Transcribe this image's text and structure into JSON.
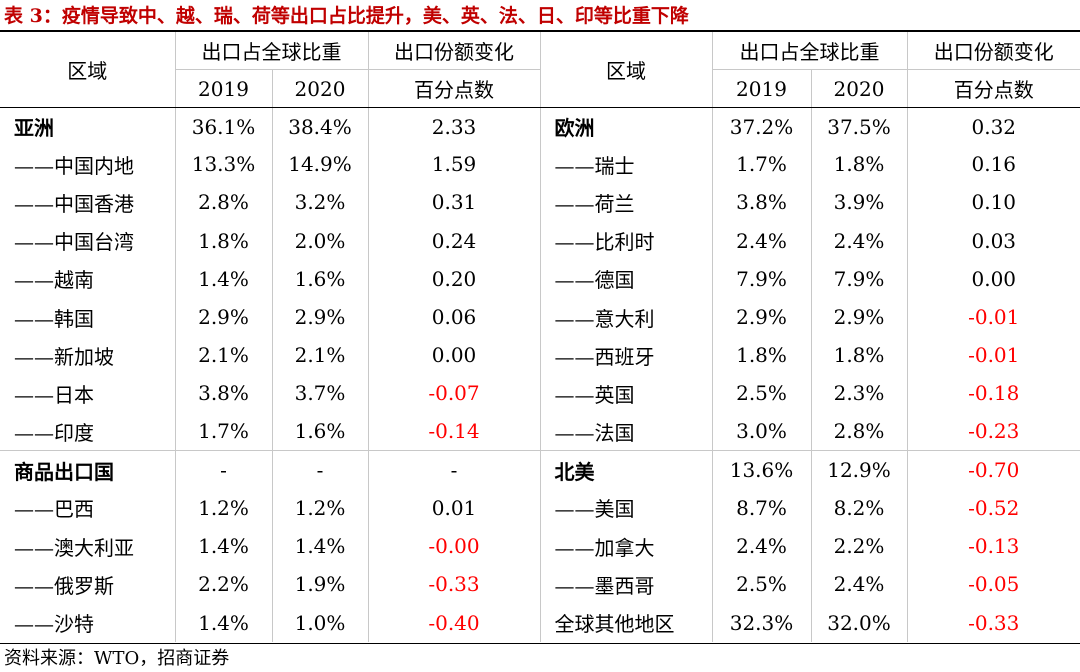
{
  "title": "表 3：疫情导致中、越、瑞、荷等出口占比提升，美、英、法、日、印等比重下降",
  "headers": {
    "region": "区域",
    "share": "出口占全球比重",
    "change": "出口份额变化",
    "y2019": "2019",
    "y2020": "2020",
    "unit": "百分点数"
  },
  "rows": [
    {
      "left": [
        "亚洲",
        "36.1%",
        "38.4%",
        "2.33"
      ],
      "right": [
        "欧洲",
        "37.2%",
        "37.5%",
        "0.32"
      ]
    },
    {
      "left": [
        "——中国内地",
        "13.3%",
        "14.9%",
        "1.59"
      ],
      "right": [
        "——瑞士",
        "1.7%",
        "1.8%",
        "0.16"
      ]
    },
    {
      "left": [
        "——中国香港",
        "2.8%",
        "3.2%",
        "0.31"
      ],
      "right": [
        "——荷兰",
        "3.8%",
        "3.9%",
        "0.10"
      ]
    },
    {
      "left": [
        "——中国台湾",
        "1.8%",
        "2.0%",
        "0.24"
      ],
      "right": [
        "——比利时",
        "2.4%",
        "2.4%",
        "0.03"
      ]
    },
    {
      "left": [
        "——越南",
        "1.4%",
        "1.6%",
        "0.20"
      ],
      "right": [
        "——德国",
        "7.9%",
        "7.9%",
        "0.00"
      ]
    },
    {
      "left": [
        "——韩国",
        "2.9%",
        "2.9%",
        "0.06"
      ],
      "right": [
        "——意大利",
        "2.9%",
        "2.9%",
        "-0.01"
      ]
    },
    {
      "left": [
        "——新加坡",
        "2.1%",
        "2.1%",
        "0.00"
      ],
      "right": [
        "——西班牙",
        "1.8%",
        "1.8%",
        "-0.01"
      ]
    },
    {
      "left": [
        "——日本",
        "3.8%",
        "3.7%",
        "-0.07"
      ],
      "right": [
        "——英国",
        "2.5%",
        "2.3%",
        "-0.18"
      ]
    },
    {
      "left": [
        "——印度",
        "1.7%",
        "1.6%",
        "-0.14"
      ],
      "right": [
        "——法国",
        "3.0%",
        "2.8%",
        "-0.23"
      ]
    },
    {
      "left": [
        "商品出口国",
        "-",
        "-",
        "-"
      ],
      "right": [
        "北美",
        "13.6%",
        "12.9%",
        "-0.70"
      ]
    },
    {
      "left": [
        "——巴西",
        "1.2%",
        "1.2%",
        "0.01"
      ],
      "right": [
        "——美国",
        "8.7%",
        "8.2%",
        "-0.52"
      ]
    },
    {
      "left": [
        "——澳大利亚",
        "1.4%",
        "1.4%",
        "-0.00"
      ],
      "right": [
        "——加拿大",
        "2.4%",
        "2.2%",
        "-0.13"
      ]
    },
    {
      "left": [
        "——俄罗斯",
        "2.2%",
        "1.9%",
        "-0.33"
      ],
      "right": [
        "——墨西哥",
        "2.5%",
        "2.4%",
        "-0.05"
      ]
    },
    {
      "left": [
        "——沙特",
        "1.4%",
        "1.0%",
        "-0.40"
      ],
      "right": [
        "全球其他地区",
        "32.3%",
        "32.0%",
        "-0.33"
      ]
    }
  ],
  "source": "资料来源：WTO，招商证券",
  "colors": {
    "title": "#c00000",
    "negative": "#ff0000"
  }
}
